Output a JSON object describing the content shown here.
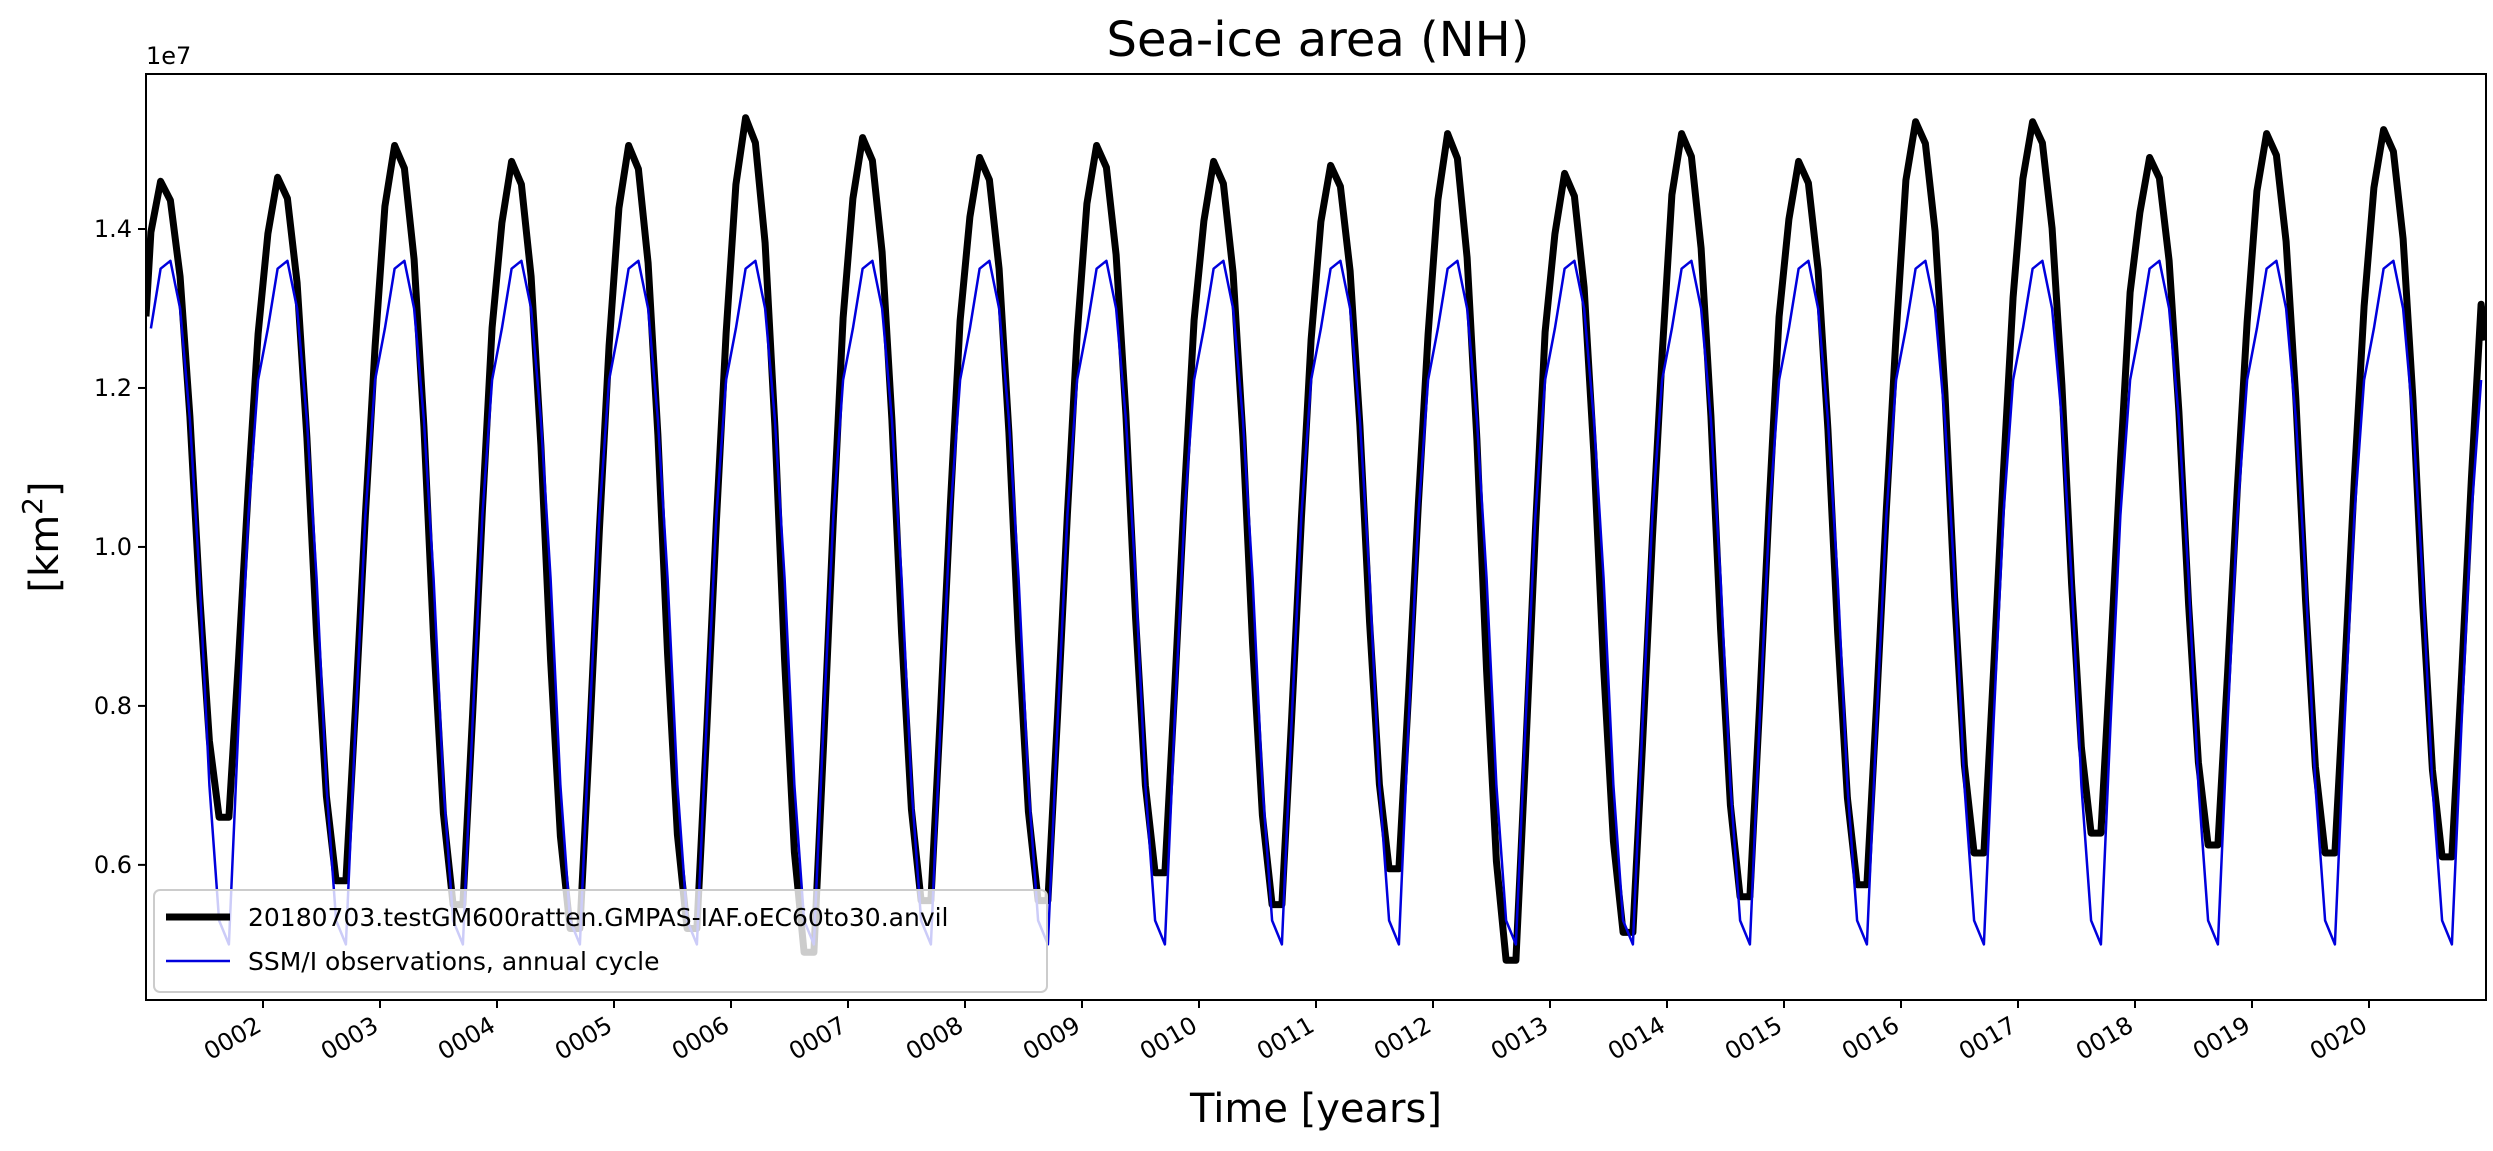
{
  "chart_data": {
    "type": "line",
    "title": "Sea-ice area (NH)",
    "xlabel": "Time [years]",
    "ylabel": "[km²]",
    "ylabel_base": "[km",
    "ylabel_sup": "2",
    "ylabel_end": "]",
    "y_offset_label": "1e7",
    "xlim": [
      1.0,
      21.0
    ],
    "ylim": [
      0.43,
      1.595
    ],
    "x_ticks": [
      2,
      3,
      4,
      5,
      6,
      7,
      8,
      9,
      10,
      11,
      12,
      13,
      14,
      15,
      16,
      17,
      18,
      19,
      20
    ],
    "x_tick_labels": [
      "0002",
      "0003",
      "0004",
      "0005",
      "0006",
      "0007",
      "0008",
      "0009",
      "0010",
      "0011",
      "0012",
      "0013",
      "0014",
      "0015",
      "0016",
      "0017",
      "0018",
      "0019",
      "0020"
    ],
    "y_ticks": [
      0.6,
      0.8,
      1.0,
      1.2,
      1.4
    ],
    "y_tick_labels": [
      "0.6",
      "0.8",
      "1.0",
      "1.2",
      "1.4"
    ],
    "grid": false,
    "legend_position": "lower-left",
    "monthly_x_offsets": [
      0.0417,
      0.125,
      0.2083,
      0.2917,
      0.375,
      0.4583,
      0.5417,
      0.625,
      0.7083,
      0.7917,
      0.875,
      0.9583
    ],
    "series": [
      {
        "name": "20180703.testGM600ratten.GMPAS-IAF.oEC60to30.anvil",
        "color": "#000000",
        "linewidth": 7,
        "yearly_max": [
          1.46,
          1.465,
          1.505,
          1.485,
          1.505,
          1.54,
          1.515,
          1.49,
          1.505,
          1.485,
          1.48,
          1.52,
          1.47,
          1.52,
          1.485,
          1.535,
          1.535,
          1.49,
          1.52,
          1.525
        ],
        "yearly_min": [
          0.66,
          0.58,
          0.55,
          0.52,
          0.52,
          0.49,
          0.555,
          0.555,
          0.59,
          0.55,
          0.595,
          0.48,
          0.515,
          0.56,
          0.575,
          0.615,
          0.64,
          0.625,
          0.615,
          0.61
        ],
        "end_value": 1.26
      },
      {
        "name": "SSM/I observations, annual cycle",
        "color": "#0000dd",
        "linewidth": 2.5,
        "climatology": [
          1.275,
          1.35,
          1.36,
          1.3,
          1.16,
          0.96,
          0.7,
          0.53,
          0.5,
          0.78,
          1.04,
          1.21
        ]
      }
    ]
  }
}
